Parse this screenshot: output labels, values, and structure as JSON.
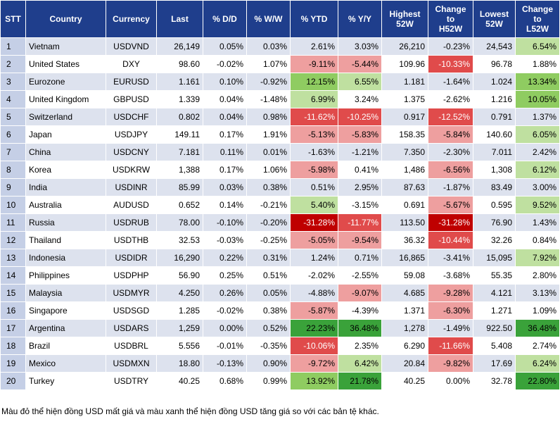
{
  "colors": {
    "header_bg": "#1f3e8c",
    "negative_scale": [
      "#f6d0d0",
      "#ee9f9f",
      "#e04b4b",
      "#bf0000"
    ],
    "positive_scale": [
      "#e3f1d6",
      "#bfe0a0",
      "#8fcc61",
      "#3aa23a"
    ]
  },
  "headers": {
    "stt": "STT",
    "country": "Country",
    "currency": "Currency",
    "last": "Last",
    "dd": "% D/D",
    "ww": "% W/W",
    "ytd": "% YTD",
    "yy": "% Y/Y",
    "high_l1": "Highest",
    "high_l2": "52W",
    "chh_l1": "Change",
    "chh_l2": "to",
    "chh_l3": "H52W",
    "low_l1": "Lowest",
    "low_l2": "52W",
    "chl_l1": "Change",
    "chl_l2": "to",
    "chl_l3": "L52W"
  },
  "rows": [
    {
      "stt": "1",
      "country": "Vietnam",
      "currency": "USDVND",
      "last": "26,149",
      "dd": "0.05%",
      "ww": "0.03%",
      "ytd": "2.61%",
      "yy": "3.03%",
      "high": "26,210",
      "chh": "-0.23%",
      "low": "24,543",
      "chl": "6.54%"
    },
    {
      "stt": "2",
      "country": "United States",
      "currency": "DXY",
      "last": "98.60",
      "dd": "-0.02%",
      "ww": "1.07%",
      "ytd": "-9.11%",
      "yy": "-5.44%",
      "high": "109.96",
      "chh": "-10.33%",
      "low": "96.78",
      "chl": "1.88%"
    },
    {
      "stt": "3",
      "country": "Eurozone",
      "currency": "EURUSD",
      "last": "1.161",
      "dd": "0.10%",
      "ww": "-0.92%",
      "ytd": "12.15%",
      "yy": "6.55%",
      "high": "1.181",
      "chh": "-1.64%",
      "low": "1.024",
      "chl": "13.34%"
    },
    {
      "stt": "4",
      "country": "United Kingdom",
      "currency": "GBPUSD",
      "last": "1.339",
      "dd": "0.04%",
      "ww": "-1.48%",
      "ytd": "6.99%",
      "yy": "3.24%",
      "high": "1.375",
      "chh": "-2.62%",
      "low": "1.216",
      "chl": "10.05%"
    },
    {
      "stt": "5",
      "country": "Switzerland",
      "currency": "USDCHF",
      "last": "0.802",
      "dd": "0.04%",
      "ww": "0.98%",
      "ytd": "-11.62%",
      "yy": "-10.25%",
      "high": "0.917",
      "chh": "-12.52%",
      "low": "0.791",
      "chl": "1.37%"
    },
    {
      "stt": "6",
      "country": "Japan",
      "currency": "USDJPY",
      "last": "149.11",
      "dd": "0.17%",
      "ww": "1.91%",
      "ytd": "-5.13%",
      "yy": "-5.83%",
      "high": "158.35",
      "chh": "-5.84%",
      "low": "140.60",
      "chl": "6.05%"
    },
    {
      "stt": "7",
      "country": "China",
      "currency": "USDCNY",
      "last": "7.181",
      "dd": "0.11%",
      "ww": "0.01%",
      "ytd": "-1.63%",
      "yy": "-1.21%",
      "high": "7.350",
      "chh": "-2.30%",
      "low": "7.011",
      "chl": "2.42%"
    },
    {
      "stt": "8",
      "country": "Korea",
      "currency": "USDKRW",
      "last": "1,388",
      "dd": "0.17%",
      "ww": "1.06%",
      "ytd": "-5.98%",
      "yy": "0.41%",
      "high": "1,486",
      "chh": "-6.56%",
      "low": "1,308",
      "chl": "6.12%"
    },
    {
      "stt": "9",
      "country": "India",
      "currency": "USDINR",
      "last": "85.99",
      "dd": "0.03%",
      "ww": "0.38%",
      "ytd": "0.51%",
      "yy": "2.95%",
      "high": "87.63",
      "chh": "-1.87%",
      "low": "83.49",
      "chl": "3.00%"
    },
    {
      "stt": "10",
      "country": "Australia",
      "currency": "AUDUSD",
      "last": "0.652",
      "dd": "0.14%",
      "ww": "-0.21%",
      "ytd": "5.40%",
      "yy": "-3.15%",
      "high": "0.691",
      "chh": "-5.67%",
      "low": "0.595",
      "chl": "9.52%"
    },
    {
      "stt": "11",
      "country": "Russia",
      "currency": "USDRUB",
      "last": "78.00",
      "dd": "-0.10%",
      "ww": "-0.20%",
      "ytd": "-31.28%",
      "yy": "-11.77%",
      "high": "113.50",
      "chh": "-31.28%",
      "low": "76.90",
      "chl": "1.43%"
    },
    {
      "stt": "12",
      "country": "Thailand",
      "currency": "USDTHB",
      "last": "32.53",
      "dd": "-0.03%",
      "ww": "-0.25%",
      "ytd": "-5.05%",
      "yy": "-9.54%",
      "high": "36.32",
      "chh": "-10.44%",
      "low": "32.26",
      "chl": "0.84%"
    },
    {
      "stt": "13",
      "country": "Indonesia",
      "currency": "USDIDR",
      "last": "16,290",
      "dd": "0.22%",
      "ww": "0.31%",
      "ytd": "1.24%",
      "yy": "0.71%",
      "high": "16,865",
      "chh": "-3.41%",
      "low": "15,095",
      "chl": "7.92%"
    },
    {
      "stt": "14",
      "country": "Philippines",
      "currency": "USDPHP",
      "last": "56.90",
      "dd": "0.25%",
      "ww": "0.51%",
      "ytd": "-2.02%",
      "yy": "-2.55%",
      "high": "59.08",
      "chh": "-3.68%",
      "low": "55.35",
      "chl": "2.80%"
    },
    {
      "stt": "15",
      "country": "Malaysia",
      "currency": "USDMYR",
      "last": "4.250",
      "dd": "0.26%",
      "ww": "0.05%",
      "ytd": "-4.88%",
      "yy": "-9.07%",
      "high": "4.685",
      "chh": "-9.28%",
      "low": "4.121",
      "chl": "3.13%"
    },
    {
      "stt": "16",
      "country": "Singapore",
      "currency": "USDSGD",
      "last": "1.285",
      "dd": "-0.02%",
      "ww": "0.38%",
      "ytd": "-5.87%",
      "yy": "-4.39%",
      "high": "1.371",
      "chh": "-6.30%",
      "low": "1.271",
      "chl": "1.09%"
    },
    {
      "stt": "17",
      "country": "Argentina",
      "currency": "USDARS",
      "last": "1,259",
      "dd": "0.00%",
      "ww": "0.52%",
      "ytd": "22.23%",
      "yy": "36.48%",
      "high": "1,278",
      "chh": "-1.49%",
      "low": "922.50",
      "chl": "36.48%"
    },
    {
      "stt": "18",
      "country": "Brazil",
      "currency": "USDBRL",
      "last": "5.556",
      "dd": "-0.01%",
      "ww": "-0.35%",
      "ytd": "-10.06%",
      "yy": "2.35%",
      "high": "6.290",
      "chh": "-11.66%",
      "low": "5.408",
      "chl": "2.74%"
    },
    {
      "stt": "19",
      "country": "Mexico",
      "currency": "USDMXN",
      "last": "18.80",
      "dd": "-0.13%",
      "ww": "0.90%",
      "ytd": "-9.72%",
      "yy": "6.42%",
      "high": "20.84",
      "chh": "-9.82%",
      "low": "17.69",
      "chl": "6.24%"
    },
    {
      "stt": "20",
      "country": "Turkey",
      "currency": "USDTRY",
      "last": "40.25",
      "dd": "0.68%",
      "ww": "0.99%",
      "ytd": "13.92%",
      "yy": "21.78%",
      "high": "40.25",
      "chh": "0.00%",
      "low": "32.78",
      "chl": "22.80%"
    }
  ],
  "note": "Màu đỏ thể hiện đồng USD mất giá và màu xanh thể hiện đồng USD tăng giá so với các bản tệ khác."
}
